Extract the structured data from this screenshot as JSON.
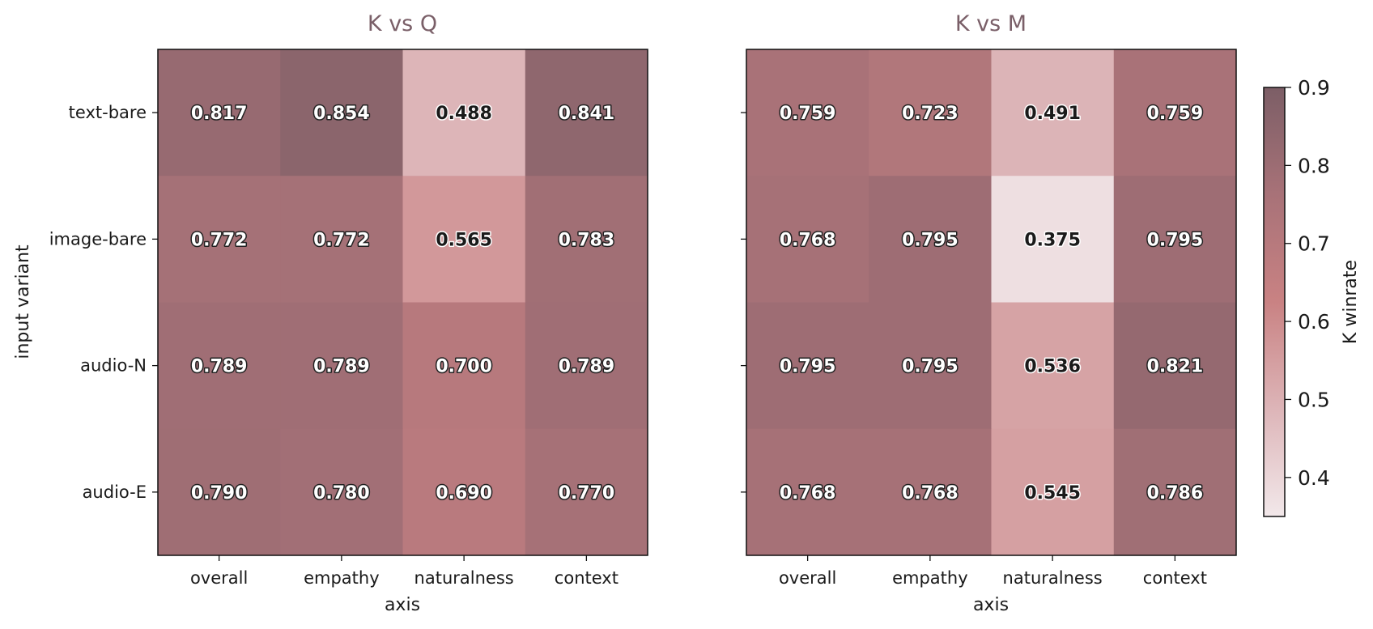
{
  "colors": {
    "title": "#7a5f68",
    "scale": [
      "#f2e8ea",
      "#ddb5b8",
      "#c98283",
      "#a87278",
      "#7c5e66"
    ],
    "frame": "#111111"
  },
  "chart_data": [
    {
      "type": "heatmap",
      "title": "K vs Q",
      "xlabel": "axis",
      "ylabel": "input variant",
      "x": [
        "overall",
        "empathy",
        "naturalness",
        "context"
      ],
      "y": [
        "text-bare",
        "image-bare",
        "audio-N",
        "audio-E"
      ],
      "values": [
        [
          0.817,
          0.854,
          0.488,
          0.841
        ],
        [
          0.772,
          0.772,
          0.565,
          0.783
        ],
        [
          0.789,
          0.789,
          0.7,
          0.789
        ],
        [
          0.79,
          0.78,
          0.69,
          0.77
        ]
      ],
      "labels": [
        [
          "0.817",
          "0.854",
          "0.488",
          "0.841"
        ],
        [
          "0.772",
          "0.772",
          "0.565",
          "0.783"
        ],
        [
          "0.789",
          "0.789",
          "0.700",
          "0.789"
        ],
        [
          "0.790",
          "0.780",
          "0.690",
          "0.770"
        ]
      ]
    },
    {
      "type": "heatmap",
      "title": "K vs M",
      "xlabel": "axis",
      "ylabel": "",
      "x": [
        "overall",
        "empathy",
        "naturalness",
        "context"
      ],
      "y": [
        "text-bare",
        "image-bare",
        "audio-N",
        "audio-E"
      ],
      "values": [
        [
          0.759,
          0.723,
          0.491,
          0.759
        ],
        [
          0.768,
          0.795,
          0.375,
          0.795
        ],
        [
          0.795,
          0.795,
          0.536,
          0.821
        ],
        [
          0.768,
          0.768,
          0.545,
          0.786
        ]
      ],
      "labels": [
        [
          "0.759",
          "0.723",
          "0.491",
          "0.759"
        ],
        [
          "0.768",
          "0.795",
          "0.375",
          "0.795"
        ],
        [
          "0.795",
          "0.795",
          "0.536",
          "0.821"
        ],
        [
          "0.768",
          "0.768",
          "0.545",
          "0.786"
        ]
      ]
    }
  ],
  "colorbar": {
    "label": "K winrate",
    "range": [
      0.35,
      0.9
    ],
    "ticks": [
      0.4,
      0.5,
      0.6,
      0.7,
      0.8,
      0.9
    ],
    "tick_labels": [
      "0.4",
      "0.5",
      "0.6",
      "0.7",
      "0.8",
      "0.9"
    ]
  }
}
